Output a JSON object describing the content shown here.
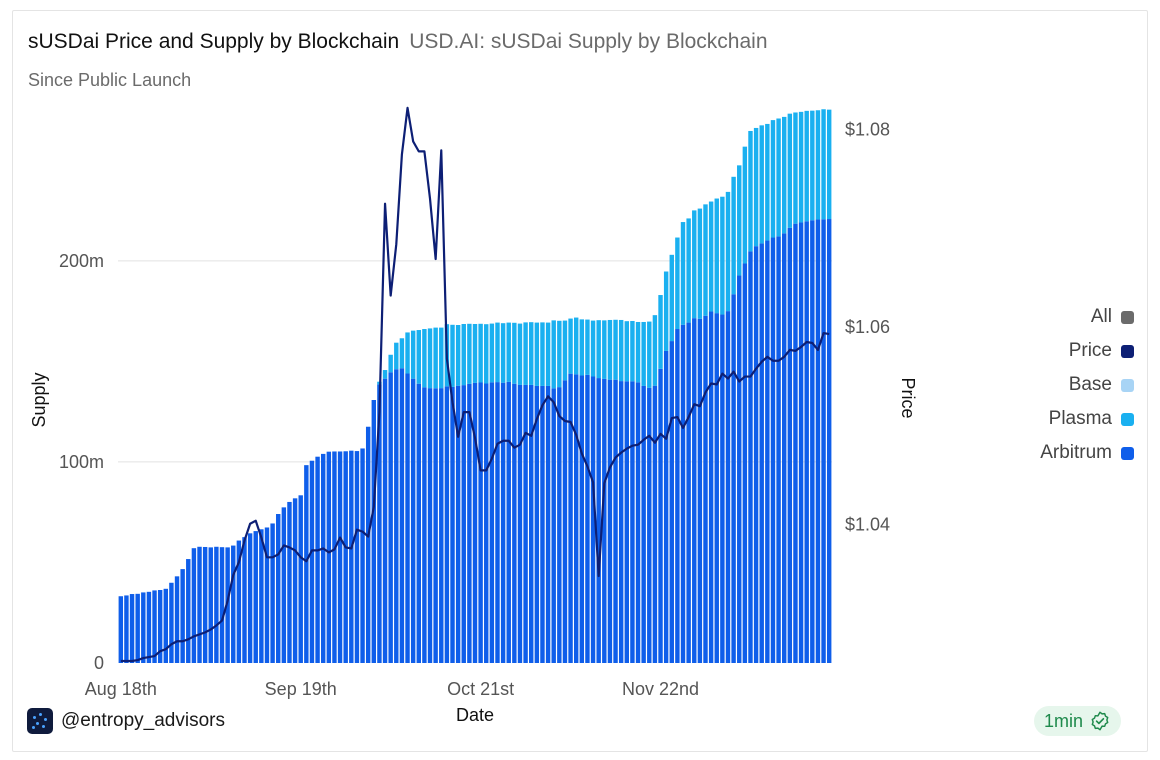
{
  "header": {
    "title": "sUSDai Price and Supply by Blockchain",
    "source": "USD.AI: sUSDai Supply by Blockchain",
    "subtitle": "Since Public Launch"
  },
  "legend": {
    "items": [
      {
        "label": "All",
        "color": "#6b6b6b"
      },
      {
        "label": "Price",
        "color": "#0d1f75"
      },
      {
        "label": "Base",
        "color": "#a8d4f5"
      },
      {
        "label": "Plasma",
        "color": "#1ab0f0"
      },
      {
        "label": "Arbitrum",
        "color": "#0f5eea"
      }
    ]
  },
  "footer": {
    "handle": "@entropy_advisors",
    "refresh": "1min"
  },
  "chart_data": {
    "type": "bar",
    "title": "sUSDai Price and Supply by Blockchain",
    "xlabel": "Date",
    "ylabel": "Supply",
    "y2label": "Price",
    "ylim": [
      0,
      280
    ],
    "y2lim": [
      1.026,
      1.083
    ],
    "yticks": [
      {
        "v": 0,
        "label": "0"
      },
      {
        "v": 100,
        "label": "100m"
      },
      {
        "v": 200,
        "label": "200m"
      }
    ],
    "y2ticks": [
      {
        "v": 1.04,
        "label": "$1.04"
      },
      {
        "v": 1.06,
        "label": "$1.06"
      },
      {
        "v": 1.08,
        "label": "$1.08"
      }
    ],
    "xticks": [
      {
        "i": 0,
        "label": "Aug 18th"
      },
      {
        "i": 32,
        "label": "Sep 19th"
      },
      {
        "i": 64,
        "label": "Oct 21st"
      },
      {
        "i": 96,
        "label": "Nov 22nd"
      }
    ],
    "grid": "horizontal",
    "legend_position": "right",
    "x_start": "Aug 18th",
    "x_step_days": 1,
    "series": [
      {
        "name": "Arbitrum",
        "color": "#0f5eea",
        "values": [
          33.2,
          33.6,
          34.3,
          34.4,
          35.1,
          35.4,
          36.1,
          36.3,
          36.9,
          39.9,
          43.1,
          46.7,
          51.7,
          57.1,
          57.8,
          57.7,
          57.5,
          57.8,
          57.6,
          57.5,
          58.4,
          60.9,
          62.6,
          64.5,
          65.6,
          66.5,
          67.4,
          69.4,
          74.1,
          77.4,
          80.1,
          81.9,
          83.4,
          98.4,
          100.6,
          102.6,
          104.0,
          105.1,
          105.2,
          105.2,
          105.3,
          105.6,
          105.4,
          106.7,
          117.5,
          130.8,
          138.6,
          141.4,
          144.6,
          146.1,
          146.6,
          144.0,
          141.4,
          138.9,
          137.1,
          136.7,
          136.6,
          136.7,
          137.6,
          137.3,
          137.9,
          138.2,
          138.8,
          139.3,
          139.5,
          139.0,
          139.6,
          139.7,
          139.4,
          139.8,
          138.9,
          138.3,
          138.3,
          138.3,
          137.8,
          137.8,
          137.8,
          136.6,
          137.2,
          140.6,
          143.9,
          143.6,
          143.0,
          143.3,
          142.5,
          141.7,
          141.3,
          140.9,
          140.9,
          140.2,
          140.1,
          140.1,
          139.6,
          137.8,
          136.9,
          137.9,
          146.3,
          155.2,
          160.1,
          166.1,
          168.2,
          169.3,
          171.5,
          171.2,
          172.7,
          174.8,
          174.0,
          173.3,
          175.0,
          183.4,
          192.7,
          198.7,
          204.7,
          207.3,
          208.7,
          210.1,
          211.6,
          212.2,
          213.7,
          216.4,
          218.5,
          219.1,
          219.7,
          220.2,
          220.6,
          220.7,
          220.8
        ]
      },
      {
        "name": "Plasma",
        "color": "#1ab0f0",
        "values": [
          0,
          0,
          0,
          0,
          0,
          0,
          0,
          0,
          0,
          0,
          0,
          0,
          0,
          0,
          0,
          0,
          0,
          0,
          0,
          0,
          0,
          0,
          0,
          0,
          0,
          0,
          0,
          0,
          0,
          0,
          0,
          0,
          0,
          0,
          0,
          0,
          0,
          0,
          0,
          0,
          0,
          0,
          0,
          0,
          0,
          0,
          1.3,
          4.3,
          8.7,
          13.2,
          14.9,
          20.4,
          23.9,
          26.7,
          29.0,
          29.7,
          30.2,
          30.1,
          30.9,
          30.9,
          30.2,
          30.4,
          29.9,
          29.3,
          29.2,
          29.5,
          29.2,
          29.6,
          29.6,
          29.5,
          30.3,
          30.5,
          31.1,
          31.2,
          31.5,
          31.6,
          31.5,
          33.8,
          33.0,
          29.7,
          27.4,
          28.2,
          27.9,
          27.5,
          27.8,
          28.8,
          29.1,
          29.7,
          29.8,
          30.4,
          29.9,
          30.0,
          30.0,
          31.8,
          32.9,
          35.1,
          36.7,
          39.5,
          42.9,
          45.5,
          51.1,
          51.8,
          53.6,
          54.8,
          55.4,
          54.7,
          57.0,
          58.6,
          59.3,
          58.4,
          54.8,
          58.1,
          59.9,
          58.8,
          58.7,
          58.0,
          58.4,
          58.6,
          57.9,
          56.8,
          55.3,
          55.0,
          54.9,
          54.5,
          54.3,
          54.7,
          54.4
        ]
      },
      {
        "name": "Base",
        "color": "#a8d4f5",
        "values": [
          0,
          0,
          0,
          0,
          0,
          0,
          0,
          0,
          0,
          0,
          0,
          0,
          0,
          0,
          0,
          0,
          0,
          0,
          0,
          0,
          0,
          0,
          0,
          0,
          0,
          0,
          0,
          0,
          0,
          0,
          0,
          0,
          0,
          0,
          0,
          0,
          0,
          0,
          0,
          0,
          0,
          0,
          0,
          0,
          0,
          0,
          0,
          0,
          0,
          0,
          0,
          0,
          0,
          0,
          0,
          0,
          0,
          0,
          0,
          0,
          0,
          0,
          0,
          0,
          0,
          0,
          0,
          0,
          0,
          0,
          0,
          0,
          0,
          0,
          0,
          0,
          0,
          0,
          0,
          0,
          0,
          0,
          0,
          0,
          0,
          0,
          0,
          0,
          0,
          0,
          0,
          0,
          0,
          0,
          0,
          0,
          0,
          0,
          0,
          0,
          0,
          0,
          0,
          0,
          0,
          0,
          0,
          0,
          0,
          0,
          0,
          0,
          0,
          0,
          0,
          0,
          0,
          0,
          0,
          0,
          0,
          0,
          0,
          0,
          0,
          0,
          0
        ]
      },
      {
        "name": "Price",
        "color": "#0d1f75",
        "axis": "right",
        "values": [
          1.0262,
          1.0262,
          1.0262,
          1.0263,
          1.0265,
          1.0266,
          1.0267,
          1.0272,
          1.0274,
          1.0279,
          1.0282,
          1.0282,
          1.0284,
          1.0287,
          1.0289,
          1.0291,
          1.0294,
          1.0298,
          1.0303,
          1.0323,
          1.0349,
          1.0362,
          1.0384,
          1.0401,
          1.0404,
          1.0387,
          1.0367,
          1.0367,
          1.037,
          1.0379,
          1.0377,
          1.0374,
          1.0367,
          1.0363,
          1.0374,
          1.0374,
          1.0376,
          1.0372,
          1.0375,
          1.0387,
          1.0377,
          1.0376,
          1.0395,
          1.0393,
          1.0388,
          1.0418,
          1.0514,
          1.0725,
          1.0632,
          1.0684,
          1.0775,
          1.0822,
          1.0788,
          1.0778,
          1.0778,
          1.073,
          1.0669,
          1.0779,
          1.0568,
          1.0524,
          1.0489,
          1.0514,
          1.0514,
          1.0488,
          1.0455,
          1.0455,
          1.0467,
          1.0482,
          1.0485,
          1.0485,
          1.0478,
          1.0481,
          1.0493,
          1.049,
          1.0507,
          1.0521,
          1.053,
          1.0524,
          1.051,
          1.0505,
          1.0504,
          1.0491,
          1.0472,
          1.0459,
          1.0443,
          1.0348,
          1.0442,
          1.0458,
          1.0468,
          1.0473,
          1.0477,
          1.048,
          1.0481,
          1.0486,
          1.049,
          1.0483,
          1.0492,
          1.0487,
          1.0508,
          1.0509,
          1.0498,
          1.0509,
          1.0522,
          1.052,
          1.0534,
          1.0543,
          1.0542,
          1.0553,
          1.0548,
          1.0555,
          1.0545,
          1.055,
          1.055,
          1.0558,
          1.0565,
          1.057,
          1.0566,
          1.0566,
          1.057,
          1.0577,
          1.0576,
          1.058,
          1.0585,
          1.0584,
          1.0577,
          1.0594,
          1.0593
        ]
      }
    ]
  }
}
